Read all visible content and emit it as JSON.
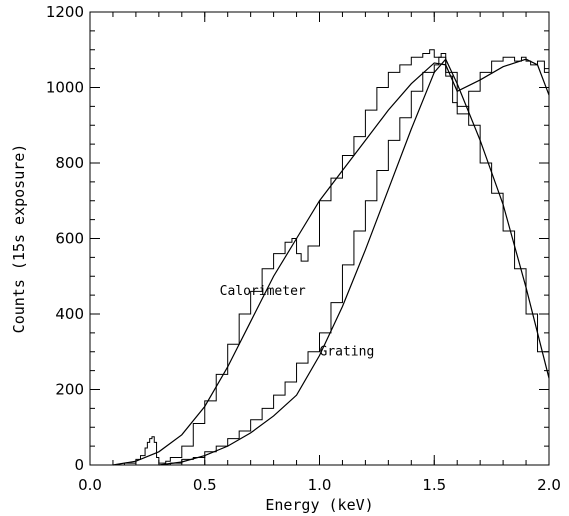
{
  "chart_data": {
    "type": "line",
    "xlabel": "Energy (keV)",
    "ylabel": "Counts (15s exposure)",
    "xlim": [
      0.0,
      2.0
    ],
    "ylim": [
      0,
      1200
    ],
    "xticks": [
      0.0,
      0.5,
      1.0,
      1.5,
      2.0
    ],
    "xtick_labels": [
      "0.0",
      "0.5",
      "1.0",
      "1.5",
      "2.0"
    ],
    "yticks": [
      0,
      200,
      400,
      600,
      800,
      1000,
      1200
    ],
    "ytick_labels": [
      "0",
      "200",
      "400",
      "600",
      "800",
      "1000",
      "1200"
    ],
    "grid": false,
    "annotations": [
      {
        "text": "Calorimeter",
        "x": 0.94,
        "y": 450
      },
      {
        "text": "Grating",
        "x": 1.0,
        "y": 290
      }
    ],
    "series": [
      {
        "style": "step-histogram",
        "x": [
          0.1,
          0.15,
          0.2,
          0.22,
          0.24,
          0.25,
          0.26,
          0.27,
          0.28,
          0.29,
          0.3,
          0.31,
          0.33,
          0.35,
          0.4,
          0.45,
          0.5,
          0.55,
          0.6,
          0.65,
          0.7,
          0.75,
          0.8,
          0.85,
          0.88,
          0.9,
          0.92,
          0.95,
          1.0,
          1.05,
          1.1,
          1.15,
          1.2,
          1.25,
          1.3,
          1.35,
          1.4,
          1.45,
          1.48,
          1.5,
          1.53,
          1.55,
          1.58,
          1.6,
          1.65,
          1.7,
          1.75,
          1.8,
          1.85,
          1.88,
          1.9,
          1.92,
          1.95,
          1.98,
          2.0
        ],
        "y": [
          0,
          5,
          15,
          25,
          45,
          60,
          70,
          75,
          60,
          20,
          5,
          5,
          10,
          20,
          50,
          110,
          170,
          240,
          320,
          400,
          460,
          520,
          560,
          590,
          600,
          560,
          540,
          580,
          700,
          760,
          820,
          870,
          940,
          1000,
          1040,
          1060,
          1080,
          1090,
          1100,
          1080,
          1090,
          1030,
          960,
          930,
          990,
          1040,
          1070,
          1080,
          1070,
          1080,
          1070,
          1060,
          1070,
          1040,
          960
        ]
      },
      {
        "style": "smooth-model",
        "x": [
          0.1,
          0.2,
          0.3,
          0.4,
          0.5,
          0.6,
          0.7,
          0.8,
          0.9,
          1.0,
          1.1,
          1.2,
          1.3,
          1.4,
          1.5,
          1.55,
          1.6,
          1.7,
          1.8,
          1.9,
          1.95,
          2.0
        ],
        "y": [
          0,
          10,
          35,
          80,
          155,
          260,
          380,
          500,
          600,
          700,
          780,
          860,
          940,
          1010,
          1065,
          1060,
          990,
          1020,
          1055,
          1075,
          1060,
          980
        ]
      },
      {
        "style": "step-histogram",
        "x": [
          0.3,
          0.35,
          0.4,
          0.45,
          0.5,
          0.55,
          0.6,
          0.65,
          0.7,
          0.75,
          0.8,
          0.85,
          0.9,
          0.95,
          1.0,
          1.05,
          1.1,
          1.15,
          1.2,
          1.25,
          1.3,
          1.35,
          1.4,
          1.45,
          1.5,
          1.52,
          1.55,
          1.6,
          1.65,
          1.7,
          1.75,
          1.8,
          1.85,
          1.9,
          1.95,
          2.0
        ],
        "y": [
          0,
          5,
          15,
          20,
          35,
          50,
          70,
          90,
          120,
          150,
          185,
          220,
          270,
          300,
          350,
          430,
          530,
          620,
          700,
          780,
          860,
          920,
          990,
          1040,
          1060,
          1080,
          1040,
          950,
          900,
          800,
          720,
          620,
          520,
          400,
          300,
          230
        ]
      },
      {
        "style": "smooth-model",
        "x": [
          0.3,
          0.4,
          0.5,
          0.6,
          0.7,
          0.8,
          0.9,
          1.0,
          1.1,
          1.2,
          1.3,
          1.4,
          1.5,
          1.55,
          1.6,
          1.7,
          1.8,
          1.9,
          2.0
        ],
        "y": [
          0,
          8,
          25,
          50,
          85,
          130,
          185,
          290,
          420,
          570,
          730,
          890,
          1040,
          1075,
          1010,
          860,
          690,
          470,
          230
        ]
      }
    ]
  }
}
